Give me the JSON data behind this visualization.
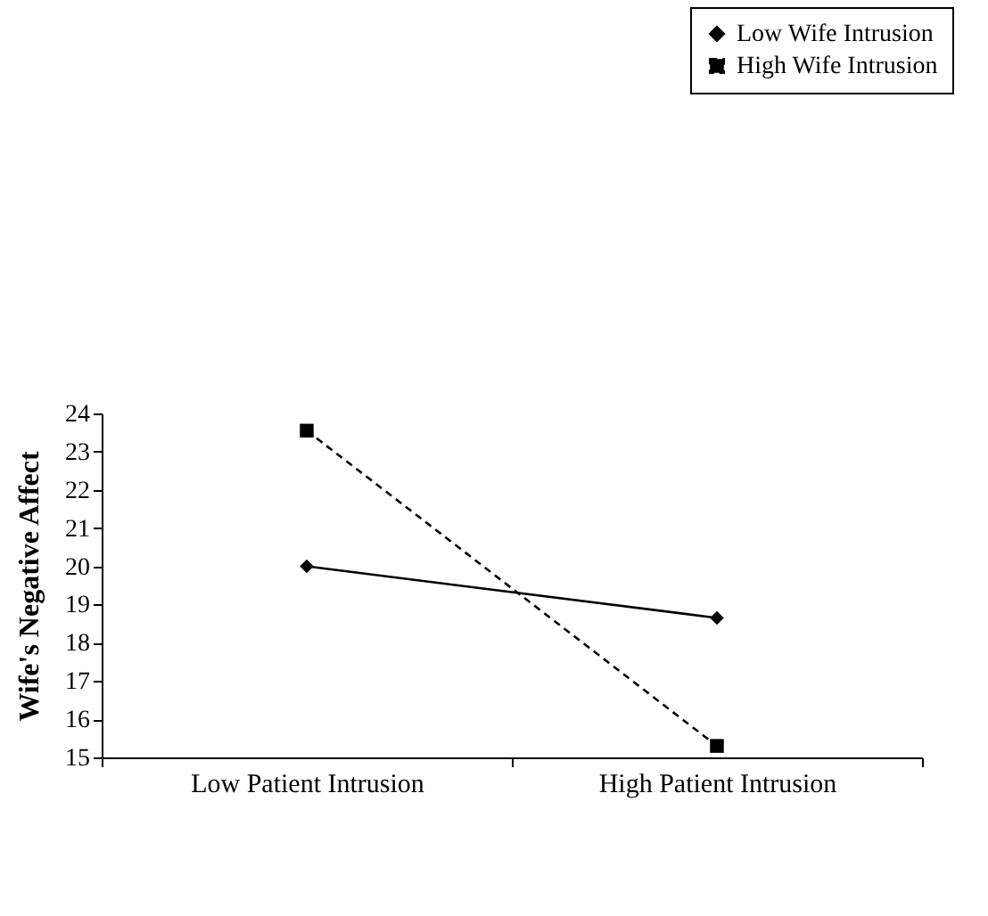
{
  "chart_data": {
    "type": "line",
    "ylabel": "Wife's Negative Affect",
    "categories": [
      "Low Patient Intrusion",
      "High Patient Intrusion"
    ],
    "series": [
      {
        "name": "Low Wife Intrusion",
        "color": "#000000",
        "values": [
          20.0,
          18.65
        ],
        "marker": "diamond",
        "line_style": "solid"
      },
      {
        "name": "High Wife Intrusion",
        "color": "#000000",
        "values": [
          23.55,
          15.3
        ],
        "marker": "square",
        "line_style": "dashed"
      }
    ],
    "ylim": [
      15,
      24
    ],
    "yticks": [
      15,
      16,
      17,
      18,
      19,
      20,
      21,
      22,
      23,
      24
    ],
    "grid": false,
    "legend": "top right"
  }
}
